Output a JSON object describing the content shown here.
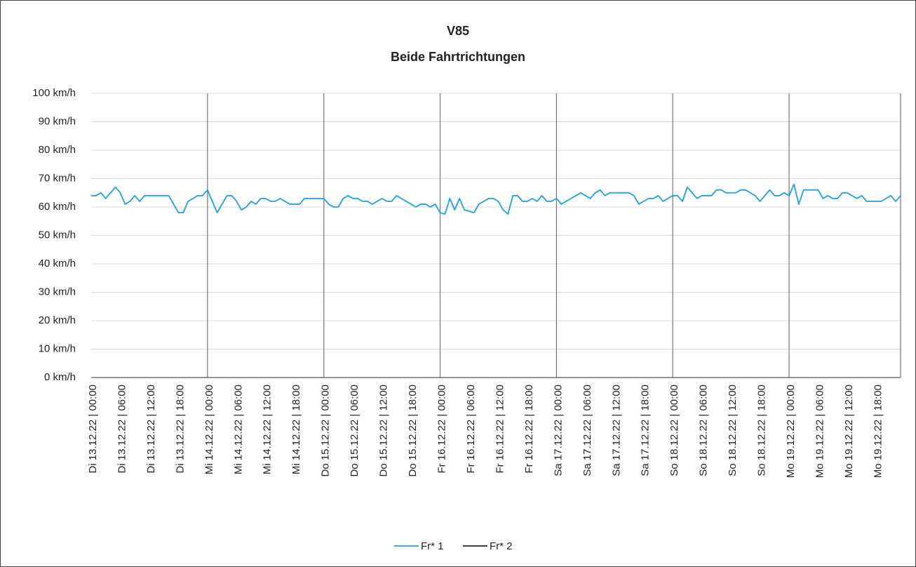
{
  "chart_data": {
    "type": "line",
    "title": "V85",
    "subtitle": "Beide Fahrtrichtungen",
    "categories": [
      "Di 13.12.22 | 00:00",
      null,
      null,
      null,
      null,
      null,
      "Di 13.12.22 | 06:00",
      null,
      null,
      null,
      null,
      null,
      "Di 13.12.22 | 12:00",
      null,
      null,
      null,
      null,
      null,
      "Di 13.12.22 | 18:00",
      null,
      null,
      null,
      null,
      null,
      "Mi 14.12.22 | 00:00",
      null,
      null,
      null,
      null,
      null,
      "Mi 14.12.22 | 06:00",
      null,
      null,
      null,
      null,
      null,
      "Mi 14.12.22 | 12:00",
      null,
      null,
      null,
      null,
      null,
      "Mi 14.12.22 | 18:00",
      null,
      null,
      null,
      null,
      null,
      "Do 15.12.22 | 00:00",
      null,
      null,
      null,
      null,
      null,
      "Do 15.12.22 | 06:00",
      null,
      null,
      null,
      null,
      null,
      "Do 15.12.22 | 12:00",
      null,
      null,
      null,
      null,
      null,
      "Do 15.12.22 | 18:00",
      null,
      null,
      null,
      null,
      null,
      "Fr 16.12.22 | 00:00",
      null,
      null,
      null,
      null,
      null,
      "Fr 16.12.22 | 06:00",
      null,
      null,
      null,
      null,
      null,
      "Fr 16.12.22 | 12:00",
      null,
      null,
      null,
      null,
      null,
      "Fr 16.12.22 | 18:00",
      null,
      null,
      null,
      null,
      null,
      "Sa 17.12.22 | 00:00",
      null,
      null,
      null,
      null,
      null,
      "Sa 17.12.22 | 06:00",
      null,
      null,
      null,
      null,
      null,
      "Sa 17.12.22 | 12:00",
      null,
      null,
      null,
      null,
      null,
      "Sa 17.12.22 | 18:00",
      null,
      null,
      null,
      null,
      null,
      "So 18.12.22 | 00:00",
      null,
      null,
      null,
      null,
      null,
      "So 18.12.22 | 06:00",
      null,
      null,
      null,
      null,
      null,
      "So 18.12.22 | 12:00",
      null,
      null,
      null,
      null,
      null,
      "So 18.12.22 | 18:00",
      null,
      null,
      null,
      null,
      null,
      "Mo 19.12.22 | 00:00",
      null,
      null,
      null,
      null,
      null,
      "Mo 19.12.22 | 06:00",
      null,
      null,
      null,
      null,
      null,
      "Mo 19.12.22 | 12:00",
      null,
      null,
      null,
      null,
      null,
      "Mo 19.12.22 | 18:00",
      null,
      null,
      null,
      null,
      null
    ],
    "series": [
      {
        "name": "Fr* 1",
        "color": "#1f9fe3",
        "values": [
          64,
          64,
          65,
          63,
          65,
          67,
          65,
          61,
          62,
          64,
          62,
          64,
          64,
          64,
          64,
          64,
          64,
          61,
          58,
          58,
          62,
          63,
          64,
          64,
          66,
          62,
          58,
          61,
          64,
          64,
          62,
          59,
          60,
          62,
          61,
          63,
          63,
          62,
          62,
          63,
          62,
          61,
          61,
          61,
          63,
          63,
          63,
          63,
          63,
          61,
          60,
          60,
          63,
          64,
          63,
          63,
          62,
          62,
          61,
          62,
          63,
          62,
          62,
          64,
          63,
          62,
          61,
          60,
          61,
          61,
          60,
          61,
          58,
          57.5,
          63,
          59,
          63,
          59,
          58.5,
          58,
          61,
          62,
          63,
          63,
          62,
          59,
          57.5,
          64,
          64,
          62,
          62,
          63,
          62,
          64,
          62,
          62,
          63,
          61,
          62,
          63,
          64,
          65,
          64,
          63,
          65,
          66,
          64,
          65,
          65,
          65,
          65,
          65,
          64,
          61,
          62,
          63,
          63,
          64,
          62,
          63,
          64,
          64,
          62,
          67,
          65,
          63,
          64,
          64,
          64,
          66,
          66,
          65,
          65,
          65,
          66,
          66,
          65,
          64,
          62,
          64,
          66,
          64,
          64,
          65,
          64,
          68,
          61,
          66,
          66,
          66,
          66,
          63,
          64,
          63,
          63,
          65,
          65,
          64,
          63,
          64,
          62,
          62,
          62,
          62,
          63,
          64,
          62,
          64
        ]
      },
      {
        "name": "Fr* 2",
        "color": "#262626",
        "values": [
          null,
          null,
          null,
          null,
          null,
          null,
          null,
          null,
          null,
          null,
          null,
          null,
          null,
          null,
          null,
          null,
          null,
          null,
          null,
          null,
          null,
          null,
          null,
          null,
          null,
          null,
          null,
          null,
          null,
          null,
          null,
          null,
          null,
          null,
          null,
          null,
          null,
          null,
          null,
          null,
          null,
          null,
          null,
          null,
          null,
          null,
          null,
          null,
          null,
          null,
          null,
          null,
          null,
          null,
          null,
          null,
          null,
          null,
          null,
          null,
          null,
          null,
          null,
          null,
          null,
          null,
          null,
          null,
          null,
          null,
          null,
          null,
          null,
          null,
          null,
          null,
          null,
          null,
          null,
          null,
          null,
          null,
          null,
          null,
          null,
          null,
          null,
          null,
          null,
          null,
          null,
          null,
          null,
          null,
          null,
          null,
          null,
          null,
          null,
          null,
          null,
          null,
          null,
          null,
          null,
          null,
          null,
          null,
          null,
          null,
          null,
          null,
          null,
          null,
          null,
          null,
          null,
          null,
          null,
          null,
          null,
          null,
          null,
          null,
          null,
          null,
          null,
          null,
          null,
          null,
          null,
          null,
          null,
          null,
          null,
          null,
          null,
          null,
          null,
          null,
          null,
          null,
          null,
          null,
          null,
          null,
          null,
          null,
          null,
          null,
          null,
          null,
          null,
          null,
          null,
          null,
          null,
          null,
          null,
          null,
          null,
          null,
          null,
          null,
          null,
          null,
          null,
          null
        ]
      }
    ],
    "ylim": [
      0,
      100
    ],
    "yticks": [
      {
        "value": 0,
        "label": "0 km/h"
      },
      {
        "value": 10,
        "label": "10 km/h"
      },
      {
        "value": 20,
        "label": "20 km/h"
      },
      {
        "value": 30,
        "label": "30 km/h"
      },
      {
        "value": 40,
        "label": "40 km/h"
      },
      {
        "value": 50,
        "label": "50 km/h"
      },
      {
        "value": 60,
        "label": "60 km/h"
      },
      {
        "value": 70,
        "label": "70 km/h"
      },
      {
        "value": 80,
        "label": "80 km/h"
      },
      {
        "value": 90,
        "label": "90 km/h"
      },
      {
        "value": 100,
        "label": "100 km/h"
      }
    ],
    "grid": true,
    "legend": "bottom"
  }
}
